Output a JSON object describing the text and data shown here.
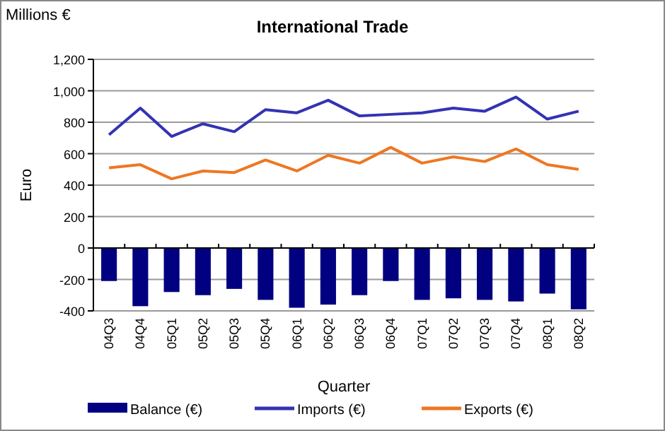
{
  "chart_data": {
    "type": "bar",
    "title": "International Trade",
    "xlabel": "Quarter",
    "ylabel": "Euro",
    "annotations": [
      "Millions €"
    ],
    "categories": [
      "04Q3",
      "04Q4",
      "05Q1",
      "05Q2",
      "05Q3",
      "05Q4",
      "06Q1",
      "06Q2",
      "06Q3",
      "06Q4",
      "07Q1",
      "07Q2",
      "07Q3",
      "07Q4",
      "08Q1",
      "08Q2"
    ],
    "series": [
      {
        "name": "Balance (€)",
        "color": "#000080",
        "values": [
          -210,
          -370,
          -280,
          -300,
          -260,
          -330,
          -380,
          -360,
          -300,
          -210,
          -330,
          -320,
          -330,
          -340,
          -290,
          -390
        ]
      },
      {
        "name": "Imports (€)",
        "type": "line",
        "color": "#3333b3",
        "values": [
          720,
          890,
          710,
          790,
          740,
          880,
          860,
          940,
          840,
          850,
          860,
          890,
          870,
          960,
          820,
          870
        ]
      },
      {
        "name": "Exports (€)",
        "type": "line",
        "color": "#ee7722",
        "values": [
          510,
          530,
          440,
          490,
          480,
          560,
          490,
          590,
          540,
          640,
          540,
          580,
          550,
          630,
          530,
          500
        ]
      }
    ],
    "ylim": [
      -400,
      1200
    ],
    "yticks": [
      {
        "value": -400,
        "label": "-400"
      },
      {
        "value": -200,
        "label": "-200"
      },
      0,
      {
        "value": 200,
        "label": "200"
      },
      {
        "value": 400,
        "label": "400"
      },
      {
        "value": 600,
        "label": "600"
      },
      {
        "value": 800,
        "label": "800"
      },
      {
        "value": 1000,
        "label": "1,000"
      },
      {
        "value": 1200,
        "label": "1,200"
      }
    ],
    "grid": "y",
    "legend": "bottom",
    "marker": "none",
    "line_style": "solid"
  }
}
